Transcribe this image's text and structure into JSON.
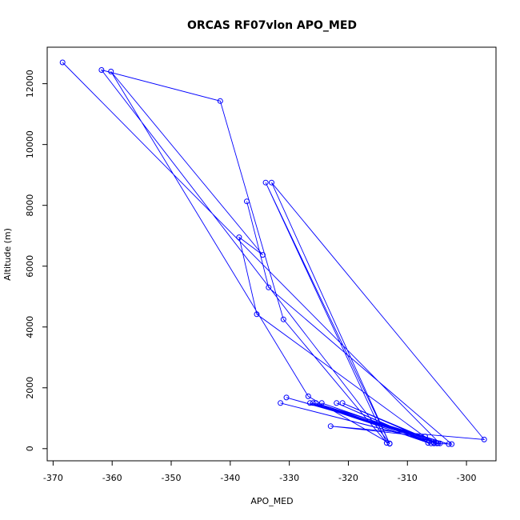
{
  "chart_data": {
    "type": "line",
    "title": "ORCAS RF07vlon APO_MED",
    "xlabel": "APO_MED",
    "ylabel": "Altitude (m)",
    "xlim": [
      -371,
      -295
    ],
    "ylim": [
      -400,
      13200
    ],
    "x_ticks": [
      -370,
      -360,
      -350,
      -340,
      -330,
      -320,
      -310,
      -300
    ],
    "y_ticks": [
      0,
      2000,
      4000,
      6000,
      8000,
      10000,
      12000
    ],
    "x_tick_labels": [
      "-370",
      "-360",
      "-350",
      "-340",
      "-330",
      "-320",
      "-310",
      "-300"
    ],
    "y_tick_labels": [
      "0",
      "2000",
      "4000",
      "6000",
      "8000",
      "10000",
      "12000"
    ],
    "grid": false,
    "legend": "none",
    "series": [
      {
        "color": "#0000ff",
        "marker": "open-circle",
        "points": [
          [
            -368.4,
            12700
          ],
          [
            -304.5,
            170
          ],
          [
            -331.5,
            1500
          ],
          [
            -306.3,
            250
          ],
          [
            -324.5,
            1500
          ],
          [
            -304.8,
            180
          ],
          [
            -321.0,
            1500
          ],
          [
            -305.5,
            200
          ],
          [
            -326.5,
            1500
          ],
          [
            -306.0,
            170
          ],
          [
            -322.0,
            1500
          ],
          [
            -306.5,
            190
          ],
          [
            -326.0,
            1500
          ],
          [
            -305.0,
            170
          ],
          [
            -325.5,
            1500
          ],
          [
            -303.0,
            150
          ],
          [
            -330.5,
            1680
          ],
          [
            -307.0,
            400
          ],
          [
            -323.0,
            740
          ],
          [
            -297.0,
            300
          ],
          [
            -333.0,
            8750
          ],
          [
            -313.0,
            160
          ],
          [
            -334.0,
            8750
          ],
          [
            -313.5,
            190
          ],
          [
            -331.0,
            4250
          ],
          [
            -341.7,
            11430
          ],
          [
            -361.8,
            12450
          ],
          [
            -313.0,
            170
          ],
          [
            -326.8,
            1720
          ],
          [
            -360.2,
            12400
          ],
          [
            -334.5,
            6370
          ],
          [
            -338.5,
            6950
          ],
          [
            -335.5,
            4420
          ],
          [
            -305.5,
            170
          ],
          [
            -302.5,
            150
          ],
          [
            -333.5,
            5300
          ],
          [
            -337.2,
            8130
          ]
        ]
      }
    ]
  }
}
